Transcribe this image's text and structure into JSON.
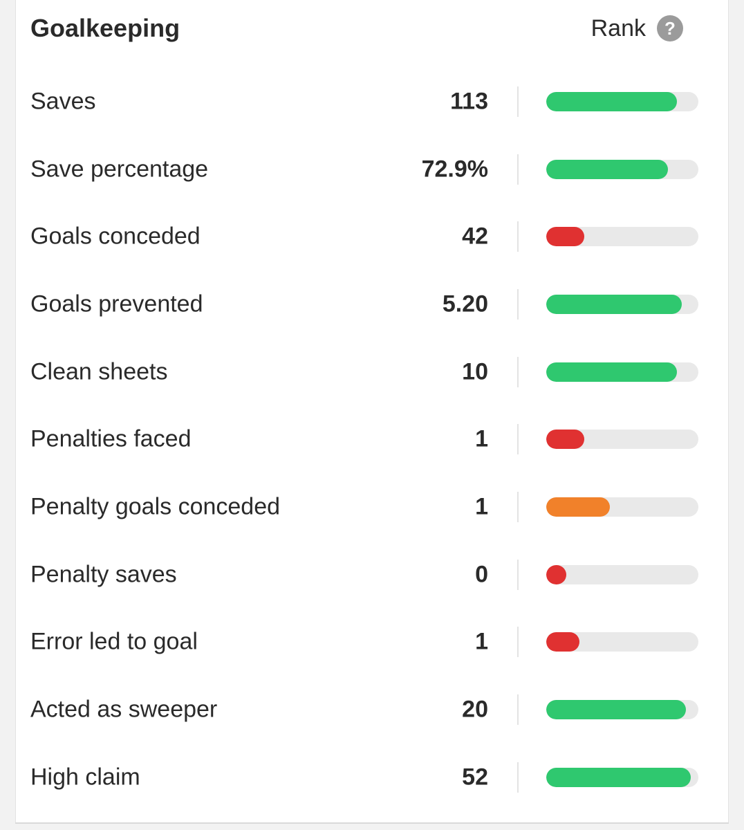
{
  "section": {
    "title": "Goalkeeping",
    "rank_label": "Rank",
    "help_glyph": "?"
  },
  "colors": {
    "green": "#2fc86f",
    "red": "#e03131",
    "orange": "#f1812a",
    "track": "#e9e9e9"
  },
  "stats": [
    {
      "label": "Saves",
      "value": "113",
      "rank_fraction": 0.86,
      "color": "green"
    },
    {
      "label": "Save percentage",
      "value": "72.9%",
      "rank_fraction": 0.8,
      "color": "green"
    },
    {
      "label": "Goals conceded",
      "value": "42",
      "rank_fraction": 0.25,
      "color": "red"
    },
    {
      "label": "Goals prevented",
      "value": "5.20",
      "rank_fraction": 0.89,
      "color": "green"
    },
    {
      "label": "Clean sheets",
      "value": "10",
      "rank_fraction": 0.86,
      "color": "green"
    },
    {
      "label": "Penalties faced",
      "value": "1",
      "rank_fraction": 0.25,
      "color": "red"
    },
    {
      "label": "Penalty goals conceded",
      "value": "1",
      "rank_fraction": 0.42,
      "color": "orange"
    },
    {
      "label": "Penalty saves",
      "value": "0",
      "rank_fraction": 0.13,
      "color": "red"
    },
    {
      "label": "Error led to goal",
      "value": "1",
      "rank_fraction": 0.22,
      "color": "red"
    },
    {
      "label": "Acted as sweeper",
      "value": "20",
      "rank_fraction": 0.92,
      "color": "green"
    },
    {
      "label": "High claim",
      "value": "52",
      "rank_fraction": 0.95,
      "color": "green"
    }
  ]
}
